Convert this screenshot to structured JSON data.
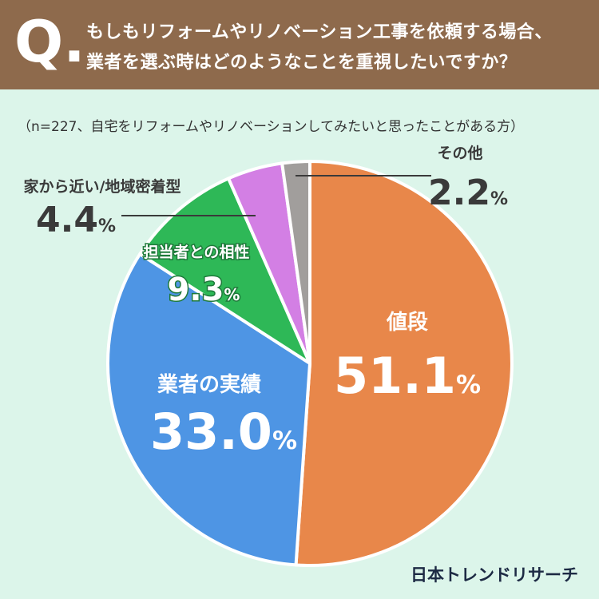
{
  "header": {
    "q_mark": "Q.",
    "question_line1": "もしもリフォームやリノベーション工事を依頼する場合、",
    "question_line2": "業者を選ぶ時はどのようなことを重視したいですか？"
  },
  "note": "（n=227、自宅をリフォームやリノベーションしてみたいと思ったことがある方）",
  "brand": "日本トレンドリサーチ",
  "colors": {
    "header_bg": "#8e6a4c",
    "page_bg": "#dcf5ea",
    "slice_price": "#e8874a",
    "slice_track_record": "#4e95e4",
    "slice_compatibility": "#2eb857",
    "slice_nearby": "#d37fe4",
    "slice_other": "#a19e9c"
  },
  "chart_data": {
    "type": "pie",
    "unit": "%",
    "slices": [
      {
        "label": "値段",
        "value": 51.1,
        "color": "#e8874a"
      },
      {
        "label": "業者の実績",
        "value": 33.0,
        "color": "#4e95e4"
      },
      {
        "label": "担当者との相性",
        "value": 9.3,
        "color": "#2eb857"
      },
      {
        "label": "家から近い/地域密着型",
        "value": 4.4,
        "color": "#d37fe4"
      },
      {
        "label": "その他",
        "value": 2.2,
        "color": "#a19e9c"
      }
    ],
    "start_angle": "12 o'clock",
    "direction": "clockwise"
  }
}
